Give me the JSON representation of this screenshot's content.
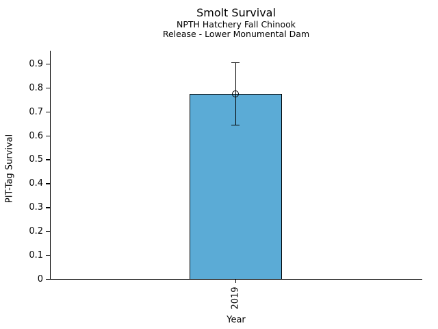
{
  "chart_data": {
    "type": "bar",
    "title": "Smolt Survival",
    "subtitle_line1": "NPTH Hatchery Fall Chinook",
    "subtitle_line2": "Release - Lower Monumental Dam",
    "xlabel": "Year",
    "ylabel": "PIT-Tag Survival",
    "categories": [
      "2019"
    ],
    "values": [
      0.775
    ],
    "error_bars": [
      {
        "low": 0.645,
        "high": 0.905
      }
    ],
    "marker": "open-circle",
    "ylim": [
      0,
      0.957
    ],
    "ytick_values": [
      0,
      0.1,
      0.2,
      0.3,
      0.4,
      0.5,
      0.6,
      0.7,
      0.8,
      0.9
    ],
    "ytick_labels": [
      "0",
      "0.1",
      "0.2",
      "0.3",
      "0.4",
      "0.5",
      "0.6",
      "0.7",
      "0.8",
      "0.9"
    ],
    "grid": false,
    "legend": "none",
    "bar_color": "#5BABD6",
    "bar_edge_color": "#000000",
    "error_color": "#000000",
    "text_color": "#000000",
    "background_color": "#ffffff"
  }
}
